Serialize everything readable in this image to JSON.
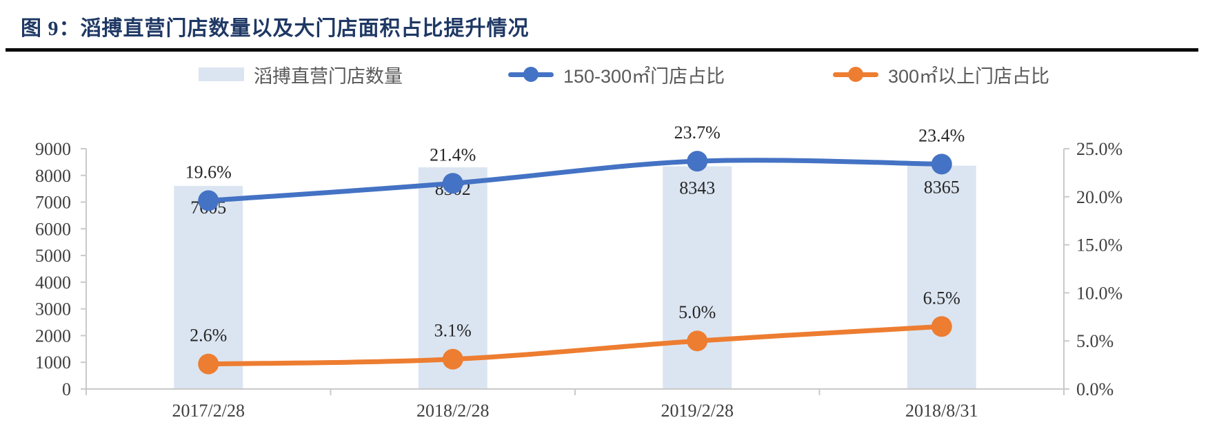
{
  "title": {
    "label": "图 9：滔搏直营门店数量以及大门店面积占比提升情况"
  },
  "colors": {
    "title_text": "#1F3864",
    "bar_fill": "#DBE5F1",
    "blue_line": "#4472C4",
    "orange_line": "#ED7D31",
    "axis_line": "#C9C9C9",
    "axis_text": "#404040",
    "data_label_text": "#262626",
    "legend_text": "#595959",
    "rule": "#0A0A0A"
  },
  "legend": {
    "items": [
      {
        "label": "滔搏直营门店数量",
        "marker": "bar-swatch"
      },
      {
        "label": "150-300㎡门店占比",
        "marker": "line-dot-blue"
      },
      {
        "label": "300㎡以上门店占比",
        "marker": "line-dot-orange"
      }
    ]
  },
  "chart_data": {
    "type": "bar",
    "subtype": "combo-bar-line",
    "title": "图 9：滔搏直营门店数量以及大门店面积占比提升情况",
    "categories": [
      "2017/2/28",
      "2018/2/28",
      "2019/2/28",
      "2018/8/31"
    ],
    "series": [
      {
        "name": "滔搏直营门店数量",
        "type": "bar",
        "axis": "left",
        "values": [
          7605,
          8302,
          8343,
          8365
        ],
        "labels": [
          "7605",
          "8302",
          "8343",
          "8365"
        ]
      },
      {
        "name": "150-300㎡门店占比",
        "type": "line",
        "axis": "right",
        "values": [
          19.6,
          21.4,
          23.7,
          23.4
        ],
        "labels": [
          "19.6%",
          "21.4%",
          "23.7%",
          "23.4%"
        ]
      },
      {
        "name": "300㎡以上门店占比",
        "type": "line",
        "axis": "right",
        "values": [
          2.6,
          3.1,
          5.0,
          6.5
        ],
        "labels": [
          "2.6%",
          "3.1%",
          "5.0%",
          "6.5%"
        ]
      }
    ],
    "left_axis": {
      "min": 0,
      "max": 9000,
      "step": 1000,
      "tick_labels": [
        "0",
        "1000",
        "2000",
        "3000",
        "4000",
        "5000",
        "6000",
        "7000",
        "8000",
        "9000"
      ]
    },
    "right_axis": {
      "min": 0,
      "max": 25,
      "step": 5,
      "tick_labels": [
        "0.0%",
        "5.0%",
        "10.0%",
        "15.0%",
        "20.0%",
        "25.0%"
      ]
    },
    "grid": false,
    "legend_position": "top"
  }
}
